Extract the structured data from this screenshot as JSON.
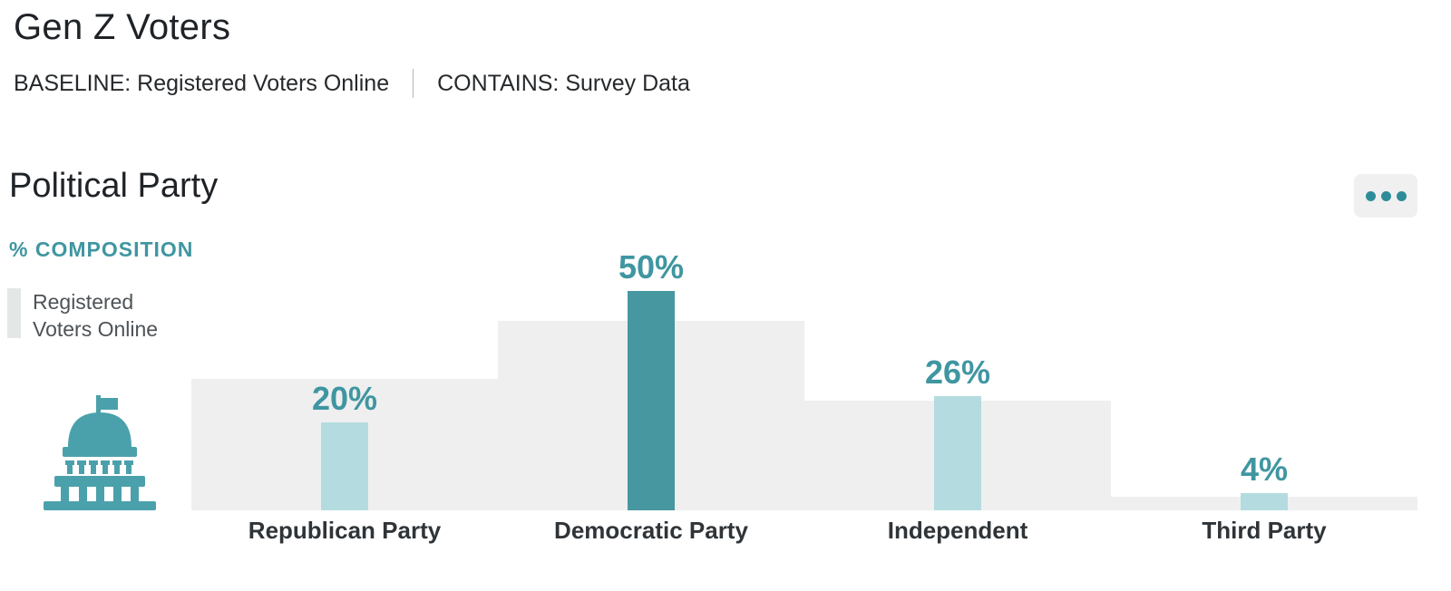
{
  "header": {
    "title": "Gen Z Voters",
    "baseline": "BASELINE: Registered Voters Online",
    "contains": "CONTAINS: Survey Data"
  },
  "section": {
    "title": "Political Party"
  },
  "chart": {
    "axis_label": "% COMPOSITION",
    "legend_label": "Registered Voters Online"
  },
  "colors": {
    "accent": "#3f96a1",
    "bar_highlight": "#4797a0",
    "bar_normal": "#b4dce0",
    "baseline_fill": "#efefef",
    "legend_swatch": "#e3e8e7",
    "menu_bg": "#f0f0f0",
    "menu_dots": "#2e8c9a",
    "icon": "#4ba1ab"
  },
  "chart_data": {
    "type": "bar",
    "title": "Political Party",
    "ylabel": "% COMPOSITION",
    "xlabel": "",
    "grid": false,
    "legend_position": "left",
    "ylim": [
      0,
      51.5
    ],
    "categories": [
      "Republican Party",
      "Democratic Party",
      "Independent",
      "Third Party"
    ],
    "series": [
      {
        "name": "Registered Voters Online",
        "role": "baseline-background",
        "values": [
          30,
          43,
          25,
          3
        ]
      },
      {
        "name": "Survey Data",
        "role": "foreground",
        "values": [
          20,
          50,
          26,
          4
        ],
        "value_labels": [
          "20%",
          "50%",
          "26%",
          "4%"
        ],
        "highlight_index": 1
      }
    ]
  }
}
